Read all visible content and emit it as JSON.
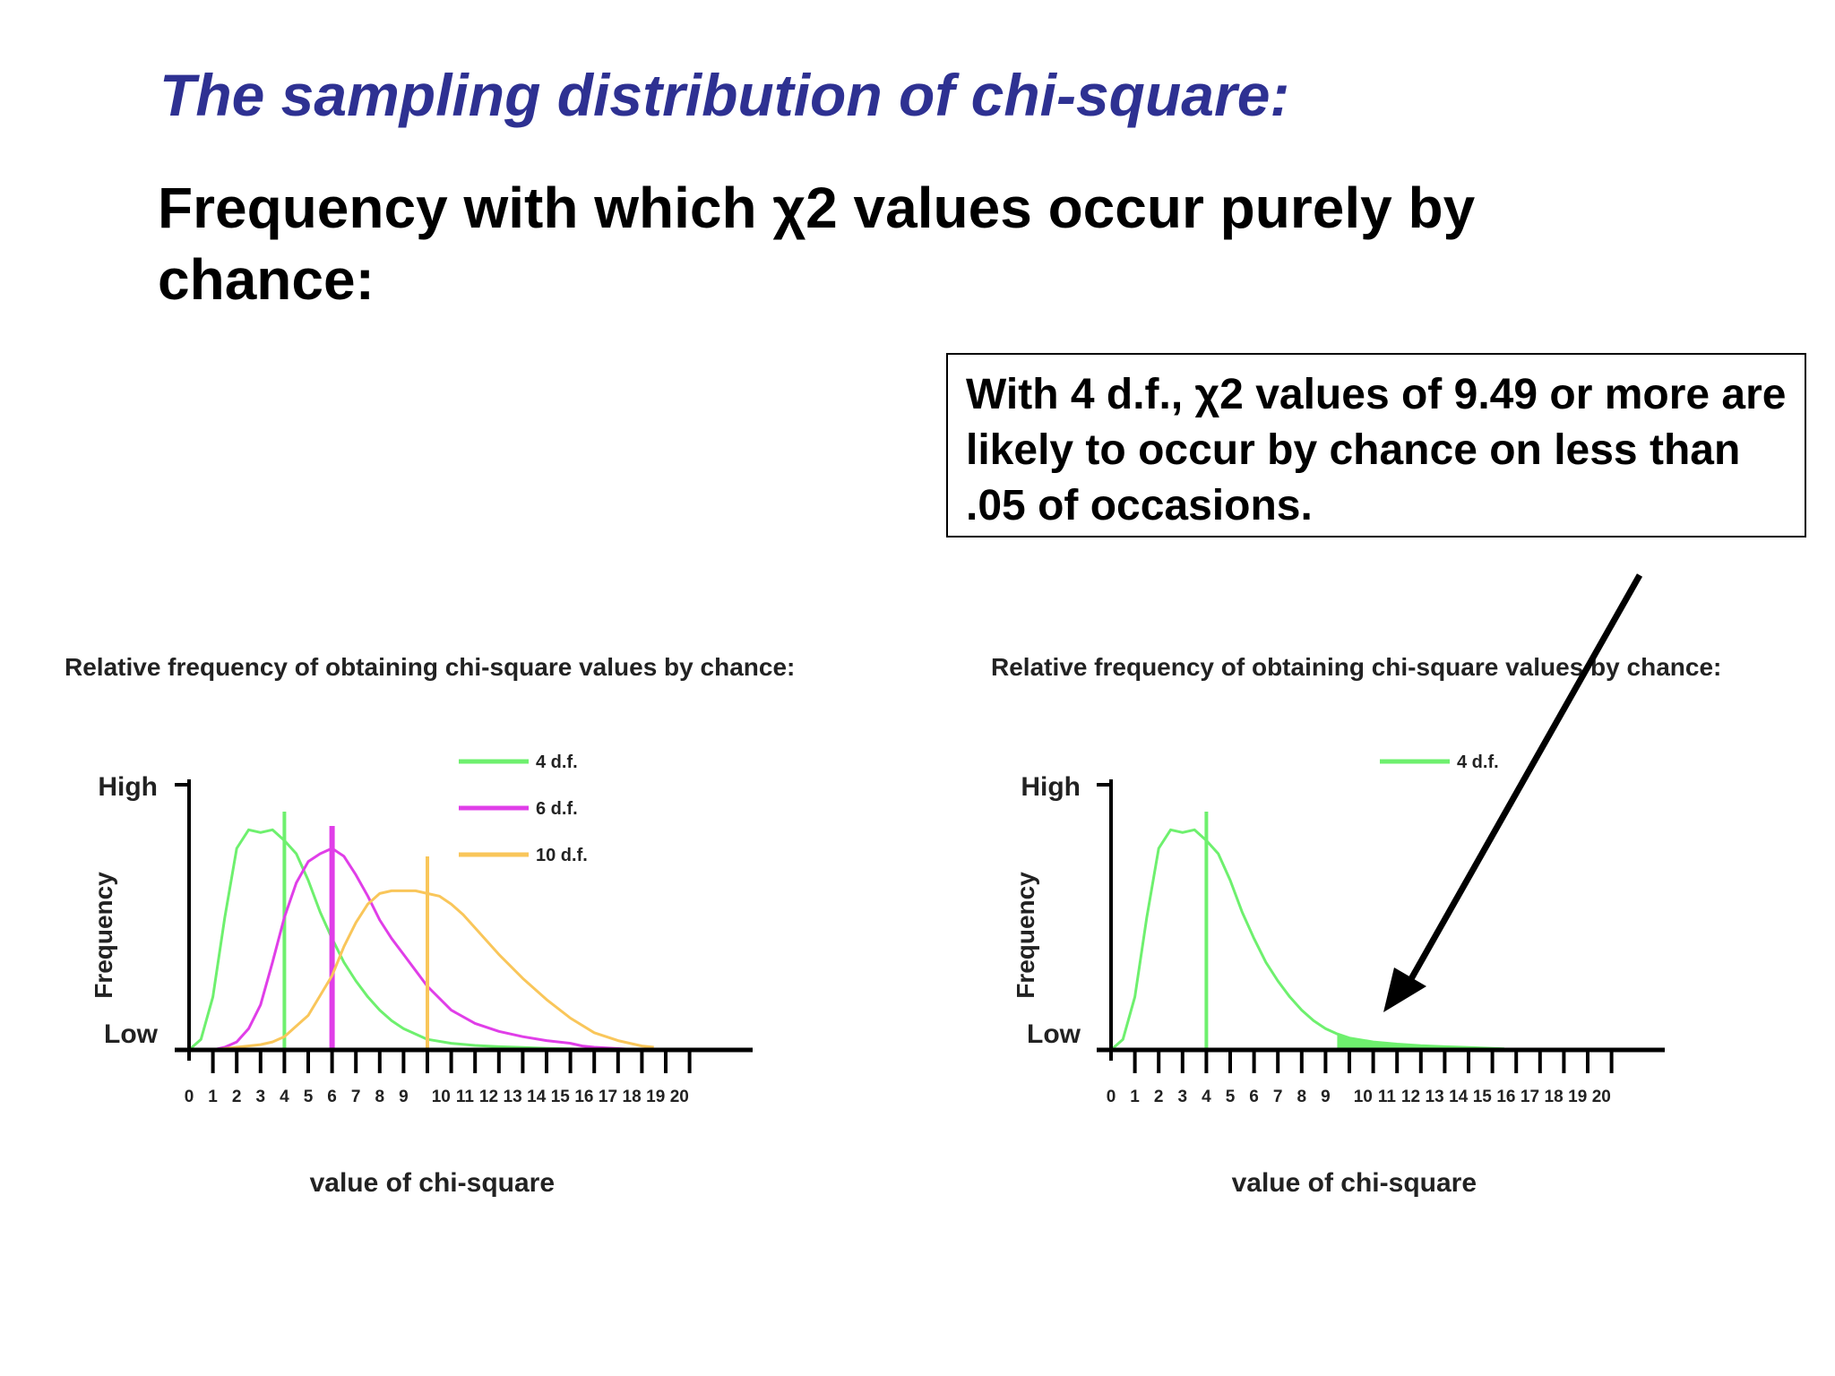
{
  "slide": {
    "title": "The sampling distribution of chi-square:",
    "subtitle": "Frequency with which χ2 values occur purely by chance:",
    "callout": " With 4 d.f., χ2 values of 9.49 or more are likely to occur by chance on less than .05 of occasions."
  },
  "chart_data": [
    {
      "type": "line",
      "title": "Relative frequency of obtaining chi-square values by chance:",
      "xlabel": "value of chi-square",
      "ylabel": "Frequency",
      "y_tick_labels": [
        "High",
        "Low"
      ],
      "x_ticks": [
        0,
        1,
        2,
        3,
        4,
        5,
        6,
        7,
        8,
        9,
        10,
        11,
        12,
        13,
        14,
        15,
        16,
        17,
        18,
        19,
        20
      ],
      "xlim": [
        0,
        20.5
      ],
      "ylim": [
        0,
        1
      ],
      "grid": false,
      "legend": "top-center",
      "series": [
        {
          "name": "4 d.f.",
          "color": "#6ef06e",
          "marker_x": 4,
          "x": [
            0,
            0.5,
            1,
            1.5,
            2,
            2.5,
            3,
            3.5,
            4,
            4.5,
            5,
            5.5,
            6,
            6.5,
            7,
            7.5,
            8,
            8.5,
            9,
            9.5,
            10,
            11,
            12,
            13,
            14,
            15,
            16,
            17
          ],
          "y": [
            0,
            0.04,
            0.2,
            0.5,
            0.76,
            0.83,
            0.82,
            0.83,
            0.79,
            0.74,
            0.64,
            0.52,
            0.42,
            0.33,
            0.26,
            0.2,
            0.15,
            0.11,
            0.08,
            0.06,
            0.04,
            0.025,
            0.017,
            0.012,
            0.009,
            0.006,
            0.004,
            0
          ]
        },
        {
          "name": "6 d.f.",
          "color": "#e03ee8",
          "marker_x": 6,
          "x": [
            1,
            1.5,
            2,
            2.5,
            3,
            3.5,
            4,
            4.5,
            5,
            5.5,
            6,
            6.5,
            7,
            7.5,
            8,
            8.5,
            9,
            9.5,
            10,
            11,
            12,
            13,
            14,
            15,
            16,
            16.5,
            17,
            18,
            19
          ],
          "y": [
            0,
            0.01,
            0.03,
            0.08,
            0.17,
            0.33,
            0.5,
            0.63,
            0.71,
            0.74,
            0.76,
            0.73,
            0.66,
            0.58,
            0.49,
            0.42,
            0.36,
            0.3,
            0.24,
            0.15,
            0.1,
            0.07,
            0.05,
            0.035,
            0.025,
            0.015,
            0.01,
            0.005,
            0
          ]
        },
        {
          "name": "10 d.f.",
          "color": "#f9c65a",
          "marker_x": 10,
          "x": [
            1,
            2,
            3,
            3.5,
            4,
            5,
            6,
            6.5,
            7,
            7.5,
            8,
            8.5,
            9,
            9.5,
            10,
            10.5,
            11,
            11.5,
            12,
            13,
            14,
            15,
            16,
            17,
            18,
            19,
            19.5
          ],
          "y": [
            0,
            0.01,
            0.02,
            0.03,
            0.05,
            0.13,
            0.28,
            0.39,
            0.48,
            0.55,
            0.59,
            0.6,
            0.6,
            0.6,
            0.59,
            0.58,
            0.55,
            0.51,
            0.46,
            0.36,
            0.27,
            0.19,
            0.12,
            0.065,
            0.035,
            0.015,
            0.01
          ]
        }
      ]
    },
    {
      "type": "area",
      "title": "Relative frequency of obtaining chi-square values by chance:",
      "xlabel": "value of chi-square",
      "ylabel": "Frequency",
      "y_tick_labels": [
        "High",
        "Low"
      ],
      "x_ticks": [
        0,
        1,
        2,
        3,
        4,
        5,
        6,
        7,
        8,
        9,
        10,
        11,
        12,
        13,
        14,
        15,
        16,
        17,
        18,
        19,
        20
      ],
      "xlim": [
        0,
        20.5
      ],
      "ylim": [
        0,
        1
      ],
      "grid": false,
      "legend": "top-center",
      "shaded_from_x": 9.49,
      "series": [
        {
          "name": "4 d.f.",
          "color": "#6ef06e",
          "marker_x": 4,
          "x": [
            0,
            0.5,
            1,
            1.5,
            2,
            2.5,
            3,
            3.5,
            4,
            4.5,
            5,
            5.5,
            6,
            6.5,
            7,
            7.5,
            8,
            8.5,
            9,
            9.5,
            10,
            11,
            12,
            13,
            14,
            15,
            16,
            16.5
          ],
          "y": [
            0,
            0.04,
            0.2,
            0.5,
            0.76,
            0.83,
            0.82,
            0.83,
            0.79,
            0.74,
            0.64,
            0.52,
            0.42,
            0.33,
            0.26,
            0.2,
            0.15,
            0.11,
            0.08,
            0.06,
            0.045,
            0.03,
            0.022,
            0.016,
            0.012,
            0.009,
            0.006,
            0.004
          ]
        }
      ]
    }
  ]
}
